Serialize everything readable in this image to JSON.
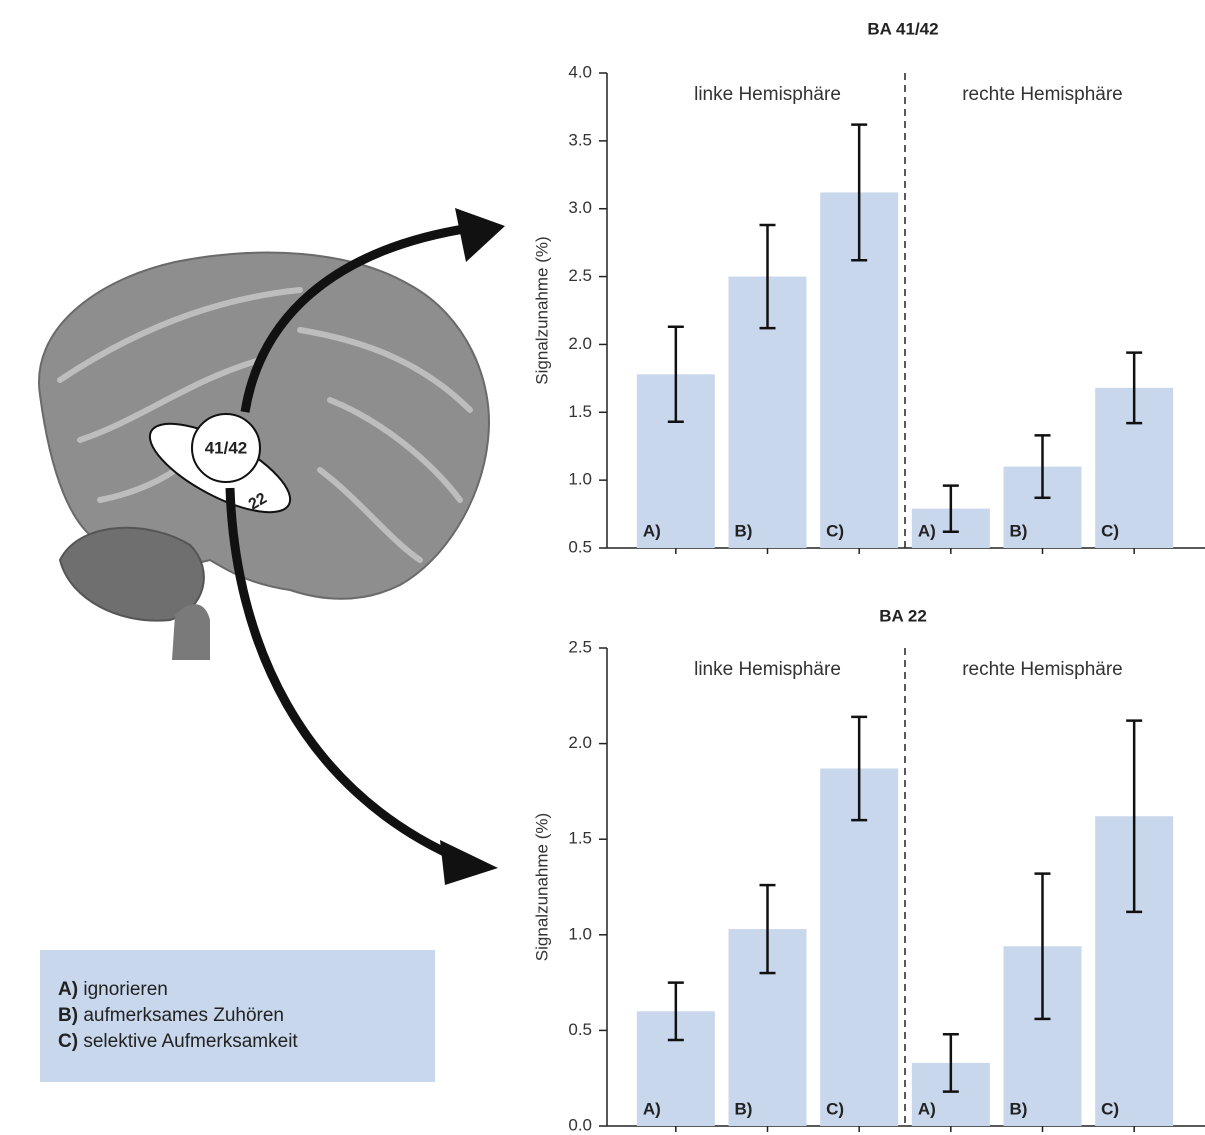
{
  "figure": {
    "region_labels": [
      "41/42",
      "22"
    ],
    "legend": [
      {
        "key": "A)",
        "text": "ignorieren"
      },
      {
        "key": "B)",
        "text": "aufmerksames Zuhören"
      },
      {
        "key": "C)",
        "text": "selektive Aufmerksamkeit"
      }
    ]
  },
  "chart_data": [
    {
      "type": "bar",
      "title": "BA 41/42",
      "y_label": "Signalzunahme (%)",
      "group_labels": [
        "linke Hemisphäre",
        "rechte Hemisphäre"
      ],
      "categories": [
        "A)",
        "B)",
        "C)",
        "A)",
        "B)",
        "C)"
      ],
      "values": [
        1.78,
        2.5,
        3.12,
        0.79,
        1.1,
        1.68
      ],
      "errors": [
        0.35,
        0.38,
        0.5,
        0.17,
        0.23,
        0.26
      ],
      "color": "#c8d7ec",
      "ylim": [
        0.5,
        4.0
      ],
      "yticks": [
        0.5,
        {
          "value": 1,
          "label": "1.0"
        },
        1.5,
        {
          "value": 2,
          "label": "2.0"
        },
        2.5,
        {
          "value": 3,
          "label": "3.0"
        },
        3.5,
        {
          "value": 4,
          "label": "4.0"
        }
      ]
    },
    {
      "type": "bar",
      "title": "BA 22",
      "y_label": "Signalzunahme (%)",
      "group_labels": [
        "linke Hemisphäre",
        "rechte Hemisphäre"
      ],
      "categories": [
        "A)",
        "B)",
        "C)",
        "A)",
        "B)",
        "C)"
      ],
      "values": [
        0.6,
        1.03,
        1.87,
        0.33,
        0.94,
        1.62
      ],
      "errors": [
        0.15,
        0.23,
        0.27,
        0.15,
        0.38,
        0.5
      ],
      "color": "#c8d7ec",
      "ylim": [
        {
          "value": 0,
          "label": "0.0"
        },
        2.5
      ],
      "yticks": [
        {
          "value": 0,
          "label": "0.0"
        },
        0.5,
        {
          "value": 1,
          "label": "1.0"
        },
        1.5,
        {
          "value": 2,
          "label": "2.0"
        },
        2.5
      ]
    }
  ]
}
